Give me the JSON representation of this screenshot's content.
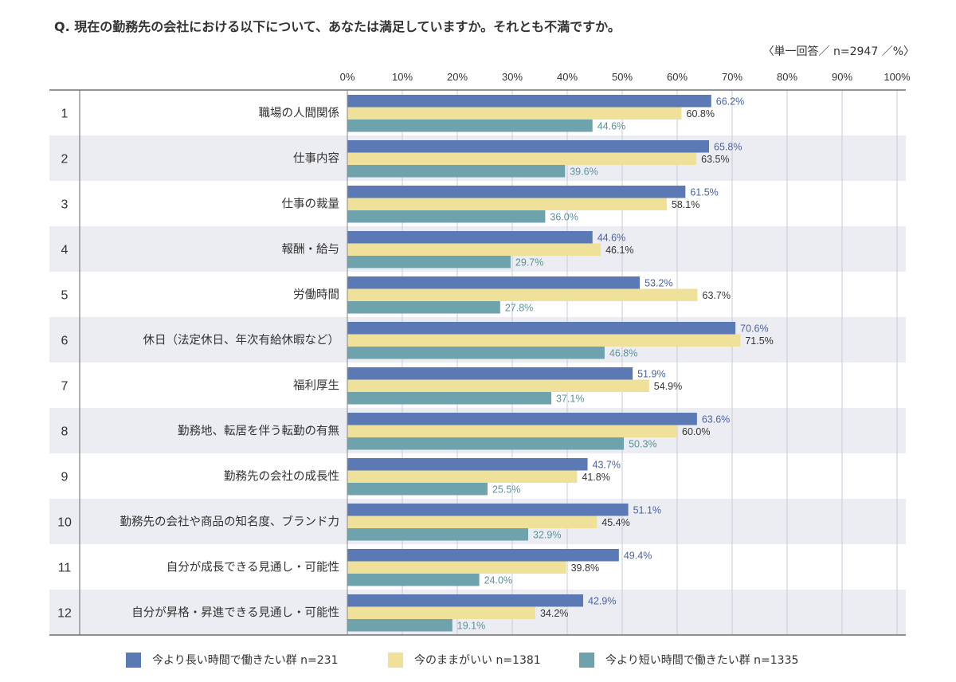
{
  "header": {
    "question": "Q. 現在の勤務先の会社における以下について、あなたは満足していますか。それとも不満ですか。",
    "note": "〈単一回答／ n=2947 ／%〉"
  },
  "colors": {
    "series_long": "#5b79b4",
    "series_same": "#efe19a",
    "series_short": "#6ea3ad",
    "label_long": "#4a62a6",
    "label_same": "#333333",
    "label_short": "#5b929c",
    "row_alt": "#ecedf2",
    "grid": "#c9cbd8"
  },
  "chart_data": {
    "type": "bar",
    "orientation": "horizontal",
    "title": "Q. 現在の勤務先の会社における以下について、あなたは満足していますか。それとも不満ですか。",
    "xlim": [
      0,
      100
    ],
    "ticks": [
      "0%",
      "10%",
      "20%",
      "30%",
      "40%",
      "50%",
      "60%",
      "70%",
      "80%",
      "90%",
      "100%"
    ],
    "row_numbers": [
      "1",
      "2",
      "3",
      "4",
      "5",
      "6",
      "7",
      "8",
      "9",
      "10",
      "11",
      "12"
    ],
    "categories": [
      "職場の人間関係",
      "仕事内容",
      "仕事の裁量",
      "報酬・給与",
      "労働時間",
      "休日（法定休日、年次有給休暇など）",
      "福利厚生",
      "勤務地、転居を伴う転勤の有無",
      "勤務先の会社の成長性",
      "勤務先の会社や商品の知名度、ブランド力",
      "自分が成長できる見通し・可能性",
      "自分が昇格・昇進できる見通し・可能性"
    ],
    "series": [
      {
        "name": "今より長い時間で働きたい群 n=231",
        "values": [
          66.2,
          65.8,
          61.5,
          44.6,
          53.2,
          70.6,
          51.9,
          63.6,
          43.7,
          51.1,
          49.4,
          42.9
        ],
        "labels": [
          "66.2%",
          "65.8%",
          "61.5%",
          "44.6%",
          "53.2%",
          "70.6%",
          "51.9%",
          "63.6%",
          "43.7%",
          "51.1%",
          "49.4%",
          "42.9%"
        ]
      },
      {
        "name": "今のままがいい n=1381",
        "values": [
          60.8,
          63.5,
          58.1,
          46.1,
          63.7,
          71.5,
          54.9,
          60.0,
          41.8,
          45.4,
          39.8,
          34.2
        ],
        "labels": [
          "60.8%",
          "63.5%",
          "58.1%",
          "46.1%",
          "63.7%",
          "71.5%",
          "54.9%",
          "60.0%",
          "41.8%",
          "45.4%",
          "39.8%",
          "34.2%"
        ]
      },
      {
        "name": "今より短い時間で働きたい群 n=1335",
        "values": [
          44.6,
          39.6,
          36.0,
          29.7,
          27.8,
          46.8,
          37.1,
          50.3,
          25.5,
          32.9,
          24.0,
          19.1
        ],
        "labels": [
          "44.6%",
          "39.6%",
          "36.0%",
          "29.7%",
          "27.8%",
          "46.8%",
          "37.1%",
          "50.3%",
          "25.5%",
          "32.9%",
          "24.0%",
          "19.1%"
        ]
      }
    ]
  },
  "legend": {
    "items": [
      "今より長い時間で働きたい群 n=231",
      "今のままがいい n=1381",
      "今より短い時間で働きたい群 n=1335"
    ]
  }
}
